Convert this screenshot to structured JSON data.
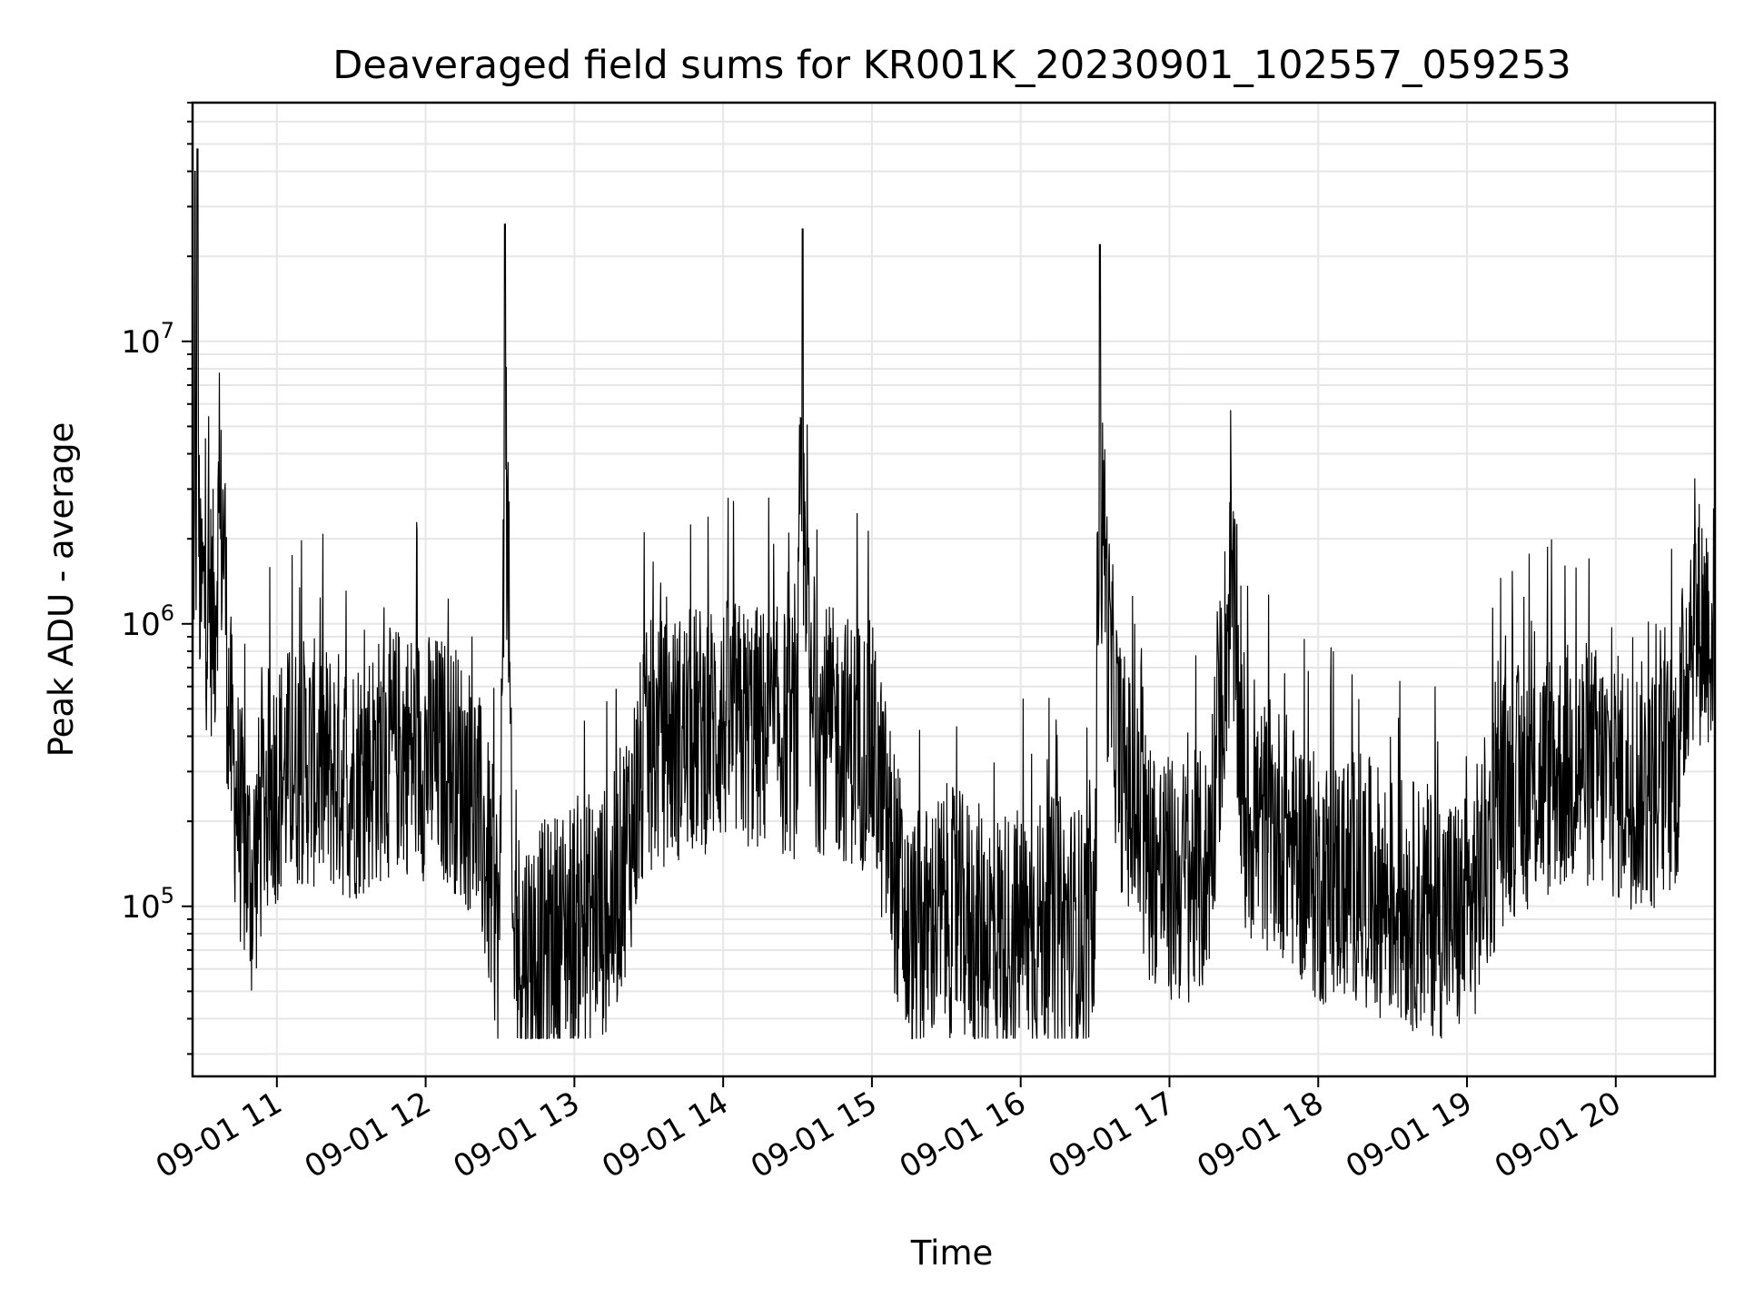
{
  "chart_data": {
    "type": "line",
    "title": "Deaveraged field sums for KR001K_20230901_102557_059253",
    "xlabel": "Time",
    "ylabel": "Peak ADU - average",
    "x_type": "datetime",
    "xlim": [
      "2023-09-01 10:26",
      "2023-09-01 20:40"
    ],
    "x_ticks": [
      {
        "value": "2023-09-01 11:00",
        "label": "09-01 11"
      },
      {
        "value": "2023-09-01 12:00",
        "label": "09-01 12"
      },
      {
        "value": "2023-09-01 13:00",
        "label": "09-01 13"
      },
      {
        "value": "2023-09-01 14:00",
        "label": "09-01 14"
      },
      {
        "value": "2023-09-01 15:00",
        "label": "09-01 15"
      },
      {
        "value": "2023-09-01 16:00",
        "label": "09-01 16"
      },
      {
        "value": "2023-09-01 17:00",
        "label": "09-01 17"
      },
      {
        "value": "2023-09-01 18:00",
        "label": "09-01 18"
      },
      {
        "value": "2023-09-01 19:00",
        "label": "09-01 19"
      },
      {
        "value": "2023-09-01 20:00",
        "label": "09-01 20"
      }
    ],
    "y_scale": "log",
    "ylim": [
      25000,
      70000000
    ],
    "y_ticks": [
      {
        "value": 100000,
        "base": "10",
        "exp": "5"
      },
      {
        "value": 1000000,
        "base": "10",
        "exp": "6"
      },
      {
        "value": 10000000,
        "base": "10",
        "exp": "7"
      }
    ],
    "grid": true,
    "legend": "none",
    "line_color": "#000000",
    "series": [
      {
        "x": [
          "2023-09-01 10:26",
          "2023-09-01 10:27",
          "2023-09-01 10:28",
          "2023-09-01 10:29",
          "2023-09-01 10:30",
          "2023-09-01 10:32",
          "2023-09-01 10:35",
          "2023-09-01 10:38",
          "2023-09-01 10:40",
          "2023-09-01 10:42",
          "2023-09-01 10:45",
          "2023-09-01 10:48",
          "2023-09-01 10:50",
          "2023-09-01 10:55",
          "2023-09-01 11:00",
          "2023-09-01 11:10",
          "2023-09-01 11:20",
          "2023-09-01 11:30",
          "2023-09-01 11:40",
          "2023-09-01 11:50",
          "2023-09-01 12:00",
          "2023-09-01 12:10",
          "2023-09-01 12:20",
          "2023-09-01 12:30",
          "2023-09-01 12:32",
          "2023-09-01 12:35",
          "2023-09-01 12:45",
          "2023-09-01 13:00",
          "2023-09-01 13:15",
          "2023-09-01 13:30",
          "2023-09-01 13:45",
          "2023-09-01 14:00",
          "2023-09-01 14:15",
          "2023-09-01 14:30",
          "2023-09-01 14:32",
          "2023-09-01 14:35",
          "2023-09-01 14:45",
          "2023-09-01 15:00",
          "2023-09-01 15:15",
          "2023-09-01 15:30",
          "2023-09-01 15:45",
          "2023-09-01 16:00",
          "2023-09-01 16:15",
          "2023-09-01 16:30",
          "2023-09-01 16:32",
          "2023-09-01 16:35",
          "2023-09-01 16:40",
          "2023-09-01 16:50",
          "2023-09-01 17:00",
          "2023-09-01 17:15",
          "2023-09-01 17:25",
          "2023-09-01 17:30",
          "2023-09-01 17:45",
          "2023-09-01 18:00",
          "2023-09-01 18:15",
          "2023-09-01 18:30",
          "2023-09-01 18:45",
          "2023-09-01 19:00",
          "2023-09-01 19:15",
          "2023-09-01 19:30",
          "2023-09-01 19:45",
          "2023-09-01 20:00",
          "2023-09-01 20:15",
          "2023-09-01 20:25",
          "2023-09-01 20:30",
          "2023-09-01 20:40"
        ],
        "values": [
          1000000,
          40000000,
          48000000,
          1200000,
          1600000,
          1400000,
          1300000,
          6500000,
          800000,
          400000,
          250000,
          180000,
          150000,
          300000,
          350000,
          400000,
          380000,
          350000,
          400000,
          450000,
          420000,
          400000,
          300000,
          100000,
          26000000,
          90000,
          85000,
          110000,
          120000,
          450000,
          500000,
          550000,
          520000,
          500000,
          25000000,
          550000,
          500000,
          450000,
          90000,
          120000,
          100000,
          100000,
          110000,
          95000,
          22000000,
          1100000,
          400000,
          200000,
          150000,
          160000,
          1700000,
          250000,
          230000,
          150000,
          160000,
          130000,
          120000,
          110000,
          300000,
          350000,
          400000,
          350000,
          320000,
          400000,
          1300000,
          1200000
        ]
      }
    ]
  }
}
